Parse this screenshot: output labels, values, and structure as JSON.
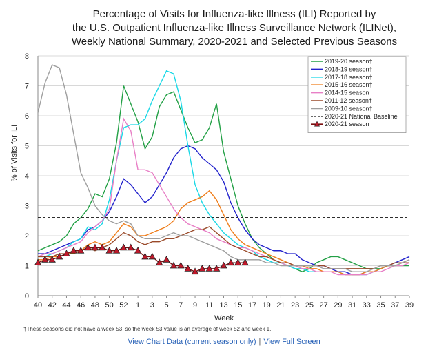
{
  "chart_data": {
    "type": "line",
    "title_lines": [
      "Percentage of Visits for Influenza-like Illness (ILI) Reported by",
      "the U.S. Outpatient Influenza-like Illness Surveillance Network (ILINet),",
      "Weekly National Summary, 2020-2021 and Selected Previous Seasons"
    ],
    "xlabel": "Week",
    "ylabel": "% of Visits for ILI",
    "ylim": [
      0,
      8
    ],
    "yticks": [
      0,
      1,
      2,
      3,
      4,
      5,
      6,
      7,
      8
    ],
    "weeks": [
      40,
      41,
      42,
      43,
      44,
      45,
      46,
      47,
      48,
      49,
      50,
      51,
      52,
      53,
      1,
      2,
      3,
      4,
      5,
      6,
      7,
      8,
      9,
      10,
      11,
      12,
      13,
      14,
      15,
      16,
      17,
      18,
      19,
      20,
      21,
      22,
      23,
      24,
      25,
      26,
      27,
      28,
      29,
      30,
      31,
      32,
      33,
      34,
      35,
      36,
      37,
      38,
      39
    ],
    "tick_labels": [
      "40",
      "42",
      "44",
      "46",
      "48",
      "50",
      "52",
      "1",
      "3",
      "5",
      "7",
      "9",
      "11",
      "13",
      "15",
      "17",
      "19",
      "21",
      "23",
      "25",
      "27",
      "29",
      "31",
      "33",
      "35",
      "37",
      "39"
    ],
    "series": [
      {
        "name": "2019-20 season†",
        "color": "#22a045",
        "dash": "solid",
        "values": [
          1.5,
          1.6,
          1.7,
          1.8,
          2.0,
          2.4,
          2.6,
          2.9,
          3.4,
          3.3,
          3.9,
          5.1,
          7.0,
          6.4,
          5.8,
          4.9,
          5.3,
          6.3,
          6.7,
          6.8,
          6.2,
          5.6,
          5.1,
          5.2,
          5.6,
          6.4,
          4.8,
          3.9,
          3.0,
          2.4,
          1.9,
          1.6,
          1.4,
          1.2,
          1.1,
          1.0,
          0.9,
          0.8,
          0.9,
          1.1,
          1.2,
          1.3,
          1.3,
          1.2,
          1.1,
          1.0,
          0.9,
          0.9,
          0.9,
          1.0,
          1.0,
          1.0,
          1.0
        ]
      },
      {
        "name": "2018-19 season†",
        "color": "#2222cc",
        "dash": "solid",
        "values": [
          1.4,
          1.4,
          1.5,
          1.6,
          1.7,
          1.8,
          1.9,
          2.2,
          2.3,
          2.5,
          2.8,
          3.3,
          3.9,
          3.7,
          3.4,
          3.1,
          3.3,
          3.7,
          4.1,
          4.6,
          4.9,
          5.0,
          4.9,
          4.6,
          4.4,
          4.2,
          3.8,
          3.1,
          2.6,
          2.2,
          1.9,
          1.7,
          1.6,
          1.5,
          1.5,
          1.4,
          1.4,
          1.2,
          1.1,
          1.0,
          1.0,
          0.9,
          0.8,
          0.8,
          0.7,
          0.7,
          0.8,
          0.8,
          0.9,
          1.0,
          1.1,
          1.2,
          1.3
        ]
      },
      {
        "name": "2017-18 season†",
        "color": "#19d8e6",
        "dash": "solid",
        "values": [
          1.3,
          1.3,
          1.4,
          1.5,
          1.6,
          1.8,
          1.9,
          2.3,
          2.2,
          2.4,
          3.2,
          4.5,
          5.6,
          5.7,
          5.7,
          5.9,
          6.5,
          7.0,
          7.5,
          7.4,
          6.5,
          5.0,
          3.7,
          3.1,
          2.7,
          2.4,
          2.1,
          1.9,
          1.7,
          1.6,
          1.5,
          1.3,
          1.2,
          1.1,
          1.1,
          1.0,
          0.9,
          0.9,
          0.8,
          0.8,
          0.8,
          0.8,
          0.8,
          0.7,
          0.7,
          0.7,
          0.7,
          0.8,
          0.9,
          1.0,
          1.0,
          1.1,
          1.2
        ]
      },
      {
        "name": "2015-16 season†",
        "color": "#ef7d1a",
        "dash": "solid",
        "values": [
          1.2,
          1.2,
          1.3,
          1.3,
          1.4,
          1.4,
          1.5,
          1.7,
          1.8,
          1.7,
          1.8,
          2.1,
          2.4,
          2.3,
          2.0,
          2.0,
          2.1,
          2.2,
          2.3,
          2.5,
          2.9,
          3.1,
          3.2,
          3.3,
          3.5,
          3.2,
          2.7,
          2.2,
          1.9,
          1.7,
          1.6,
          1.5,
          1.4,
          1.3,
          1.2,
          1.1,
          1.0,
          1.0,
          0.9,
          0.9,
          0.8,
          0.8,
          0.8,
          0.7,
          0.7,
          0.7,
          0.8,
          0.8,
          0.9,
          1.0,
          1.0,
          1.1,
          1.2
        ]
      },
      {
        "name": "2014-15 season",
        "color": "#e87fc6",
        "dash": "solid",
        "values": [
          1.3,
          1.4,
          1.4,
          1.5,
          1.6,
          1.7,
          1.8,
          2.1,
          2.3,
          2.5,
          2.9,
          4.5,
          5.9,
          5.5,
          4.2,
          4.2,
          4.1,
          3.7,
          3.3,
          2.9,
          2.6,
          2.4,
          2.3,
          2.2,
          2.1,
          1.9,
          1.8,
          1.7,
          1.6,
          1.6,
          1.5,
          1.4,
          1.3,
          1.2,
          1.1,
          1.0,
          1.0,
          0.9,
          0.9,
          0.8,
          0.8,
          0.8,
          0.7,
          0.7,
          0.7,
          0.7,
          0.7,
          0.8,
          0.8,
          0.9,
          1.0,
          1.0,
          1.1
        ]
      },
      {
        "name": "2011-12 season†",
        "color": "#9a4a2a",
        "dash": "solid",
        "values": [
          1.3,
          1.3,
          1.3,
          1.4,
          1.4,
          1.5,
          1.5,
          1.6,
          1.5,
          1.6,
          1.7,
          1.9,
          2.1,
          2.0,
          1.8,
          1.7,
          1.8,
          1.8,
          1.9,
          1.9,
          2.0,
          2.1,
          2.2,
          2.2,
          2.3,
          2.1,
          1.9,
          1.7,
          1.6,
          1.5,
          1.4,
          1.3,
          1.3,
          1.2,
          1.1,
          1.1,
          1.0,
          1.0,
          1.0,
          1.0,
          1.0,
          0.9,
          0.9,
          0.9,
          0.9,
          0.9,
          0.9,
          0.9,
          1.0,
          1.0,
          1.1,
          1.1,
          1.1
        ]
      },
      {
        "name": "2009-10 season†",
        "color": "#9e9e9e",
        "dash": "solid",
        "values": [
          6.1,
          7.1,
          7.7,
          7.6,
          6.7,
          5.4,
          4.1,
          3.6,
          3.0,
          2.7,
          2.5,
          2.4,
          2.5,
          2.4,
          2.0,
          1.9,
          1.9,
          1.9,
          2.0,
          2.1,
          2.0,
          2.0,
          1.9,
          1.8,
          1.7,
          1.6,
          1.5,
          1.3,
          1.2,
          1.2,
          1.2,
          1.2,
          1.1,
          1.1,
          1.0,
          1.0,
          1.0,
          1.0,
          1.0,
          1.0,
          0.9,
          0.9,
          0.9,
          0.9,
          0.8,
          0.8,
          0.8,
          0.9,
          1.0,
          1.0,
          1.0,
          1.1,
          1.2
        ]
      },
      {
        "name": "2020-21 National Baseline",
        "color": "#111111",
        "dash": "dashed",
        "values": [
          2.6,
          2.6,
          2.6,
          2.6,
          2.6,
          2.6,
          2.6,
          2.6,
          2.6,
          2.6,
          2.6,
          2.6,
          2.6,
          2.6,
          2.6,
          2.6,
          2.6,
          2.6,
          2.6,
          2.6,
          2.6,
          2.6,
          2.6,
          2.6,
          2.6,
          2.6,
          2.6,
          2.6,
          2.6,
          2.6,
          2.6,
          2.6,
          2.6,
          2.6,
          2.6,
          2.6,
          2.6,
          2.6,
          2.6,
          2.6,
          2.6,
          2.6,
          2.6,
          2.6,
          2.6,
          2.6,
          2.6,
          2.6,
          2.6,
          2.6,
          2.6,
          2.6,
          2.6
        ]
      },
      {
        "name": "2020-21 season",
        "color": "#7a1010",
        "fill": "#c0182a",
        "dash": "solid",
        "marker": "triangle",
        "values": [
          1.1,
          1.2,
          1.2,
          1.3,
          1.4,
          1.5,
          1.5,
          1.6,
          1.6,
          1.6,
          1.5,
          1.5,
          1.6,
          1.6,
          1.5,
          1.3,
          1.3,
          1.1,
          1.2,
          1.0,
          1.0,
          0.9,
          0.8,
          0.9,
          0.9,
          0.9,
          1.0,
          1.1,
          1.1,
          1.1
        ]
      }
    ],
    "legend_position": "top-right",
    "footnote": "†These seasons did not have a week 53, so the week 53 value is an average of week 52 and week 1."
  },
  "links": {
    "chart_data_label": "View Chart Data (current season only)",
    "separator": "|",
    "full_screen_label": "View Full Screen"
  }
}
